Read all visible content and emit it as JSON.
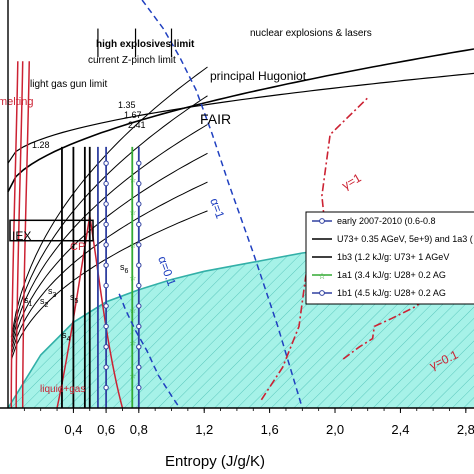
{
  "chart_data": {
    "type": "line",
    "xlabel": "Entropy (J/g/K)",
    "ylabel": "",
    "xlim": [
      0.0,
      2.85
    ],
    "x_ticks": [
      "0,4",
      "0,6",
      "0,8",
      "1,2",
      "1,6",
      "2,0",
      "2,4",
      "2,8"
    ],
    "x_tick_values": [
      0.4,
      0.6,
      0.8,
      1.2,
      1.6,
      2.0,
      2.4,
      2.8
    ],
    "labels": {
      "nuclear": "nuclear explosions & lasers",
      "high_explosives": "high explosives limit",
      "zpinch": "current Z-pinch limit",
      "light_gas_gun": "light gas gun limit",
      "melting": "melting",
      "principal_hugoniot": "principal Hugoniot",
      "fair": "FAIR",
      "iex": "IEX",
      "cp": "CP",
      "liquid_gas": "liquid+gas",
      "alpha1": "α=1",
      "alpha01": "α=0.1",
      "gamma1": "γ=1",
      "gamma01": "γ=0.1"
    },
    "hugoniot_labels": [
      "1.35",
      "1.67",
      "2.41",
      "1.28"
    ],
    "s_labels": [
      "s1",
      "s2",
      "s3",
      "s4",
      "s5",
      "s6"
    ],
    "s_label_display": [
      [
        "s",
        "1"
      ],
      [
        "s",
        "2"
      ],
      [
        "s",
        "3"
      ],
      [
        "s",
        "4"
      ],
      [
        "s",
        "5"
      ],
      [
        "s",
        "6"
      ]
    ],
    "legend": [
      {
        "label": "early 2007-2010 (0.6-0.8",
        "color": "#3040a0",
        "marker": "circle"
      },
      {
        "label": "U73+ 0.35 AGeV, 5e+9) and 1a3 (",
        "color": "#000000",
        "marker": "none"
      },
      {
        "label": "1b3 (1.2 kJ/g: U73+ 1 AGeV",
        "color": "#000000",
        "marker": "line"
      },
      {
        "label": "1a1 (3.4 kJ/g: U28+ 0.2 AG",
        "color": "#33aa33",
        "marker": "star"
      },
      {
        "label": "1b1 (4.5 kJ/g: U28+ 0.2 AG",
        "color": "#3040a0",
        "marker": "circle"
      }
    ],
    "series": [
      {
        "name": "principal Hugoniot",
        "color": "#000000",
        "x": [
          0.0,
          0.25,
          0.5,
          0.8,
          1.2,
          1.6,
          2.0,
          2.4,
          2.85
        ],
        "y": [
          0.08,
          0.22,
          0.31,
          0.37,
          0.43,
          0.49,
          0.54,
          0.57,
          0.62
        ]
      },
      {
        "name": "FAIR",
        "color": "#33b0a8",
        "x": [
          0.0,
          0.2,
          0.4,
          0.6,
          0.8,
          1.0,
          1.2,
          1.4,
          1.6,
          1.8,
          2.0,
          2.2,
          2.4,
          2.6,
          2.85
        ],
        "y": [
          0.0,
          0.13,
          0.21,
          0.26,
          0.29,
          0.315,
          0.335,
          0.35,
          0.365,
          0.38,
          0.39,
          0.4,
          0.41,
          0.415,
          0.42
        ]
      },
      {
        "name": "α=1",
        "color": "#2040c0",
        "x": [
          0.82,
          0.95,
          1.05,
          1.15,
          1.25,
          1.35,
          1.5,
          1.65,
          1.8
        ],
        "y": [
          1.0,
          0.93,
          0.86,
          0.78,
          0.67,
          0.55,
          0.38,
          0.2,
          0.0
        ]
      },
      {
        "name": "γ=1",
        "color": "#cc2233",
        "x": [
          1.55,
          1.68,
          1.78,
          1.82,
          1.86,
          1.94,
          1.92,
          1.97,
          2.2
        ],
        "y": [
          0.02,
          0.1,
          0.2,
          0.32,
          0.4,
          0.44,
          0.52,
          0.67,
          0.76
        ]
      },
      {
        "name": "γ=0.1",
        "color": "#cc2233",
        "x": [
          2.05,
          2.15,
          2.23,
          2.24,
          2.35,
          2.5,
          2.62,
          2.7
        ],
        "y": [
          0.12,
          0.15,
          0.17,
          0.2,
          0.22,
          0.25,
          0.3,
          0.38
        ]
      }
    ],
    "grid": false
  }
}
